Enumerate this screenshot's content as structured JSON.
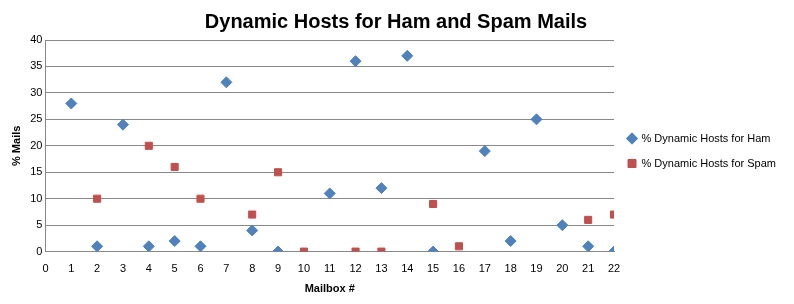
{
  "chart_data": {
    "type": "scatter",
    "title": "Dynamic Hosts for Ham and Spam Mails",
    "x_label": "Mailbox #",
    "y_label": "% Mails",
    "series": [
      {
        "name": "% Dynamic Hosts for Ham",
        "color": "#4f81bd",
        "marker": "diamond",
        "x": [
          1,
          2,
          3,
          4,
          5,
          6,
          7,
          8,
          9,
          11,
          12,
          13,
          14,
          15,
          17,
          18,
          19,
          20,
          21,
          22
        ],
        "values": [
          28,
          1,
          24,
          1,
          2,
          1,
          32,
          4,
          0,
          11,
          36,
          12,
          37,
          0,
          19,
          2,
          25,
          5,
          1,
          0
        ]
      },
      {
        "name": "% Dynamic Hosts for Spam",
        "color": "#c0504d",
        "marker": "square",
        "x": [
          2,
          4,
          5,
          6,
          8,
          9,
          10,
          12,
          13,
          15,
          16,
          21,
          22
        ],
        "values": [
          10,
          20,
          16,
          10,
          7,
          15,
          0,
          0,
          0,
          9,
          1,
          6,
          7
        ]
      }
    ],
    "xlim": [
      0,
      22
    ],
    "xticks": [
      0,
      1,
      2,
      3,
      4,
      5,
      6,
      7,
      8,
      9,
      10,
      11,
      12,
      13,
      14,
      15,
      16,
      17,
      18,
      19,
      20,
      21,
      22
    ],
    "ylim": [
      0,
      40
    ],
    "yticks": [
      0,
      5,
      10,
      15,
      20,
      25,
      30,
      35,
      40
    ],
    "grid": "y",
    "legend": "right"
  }
}
